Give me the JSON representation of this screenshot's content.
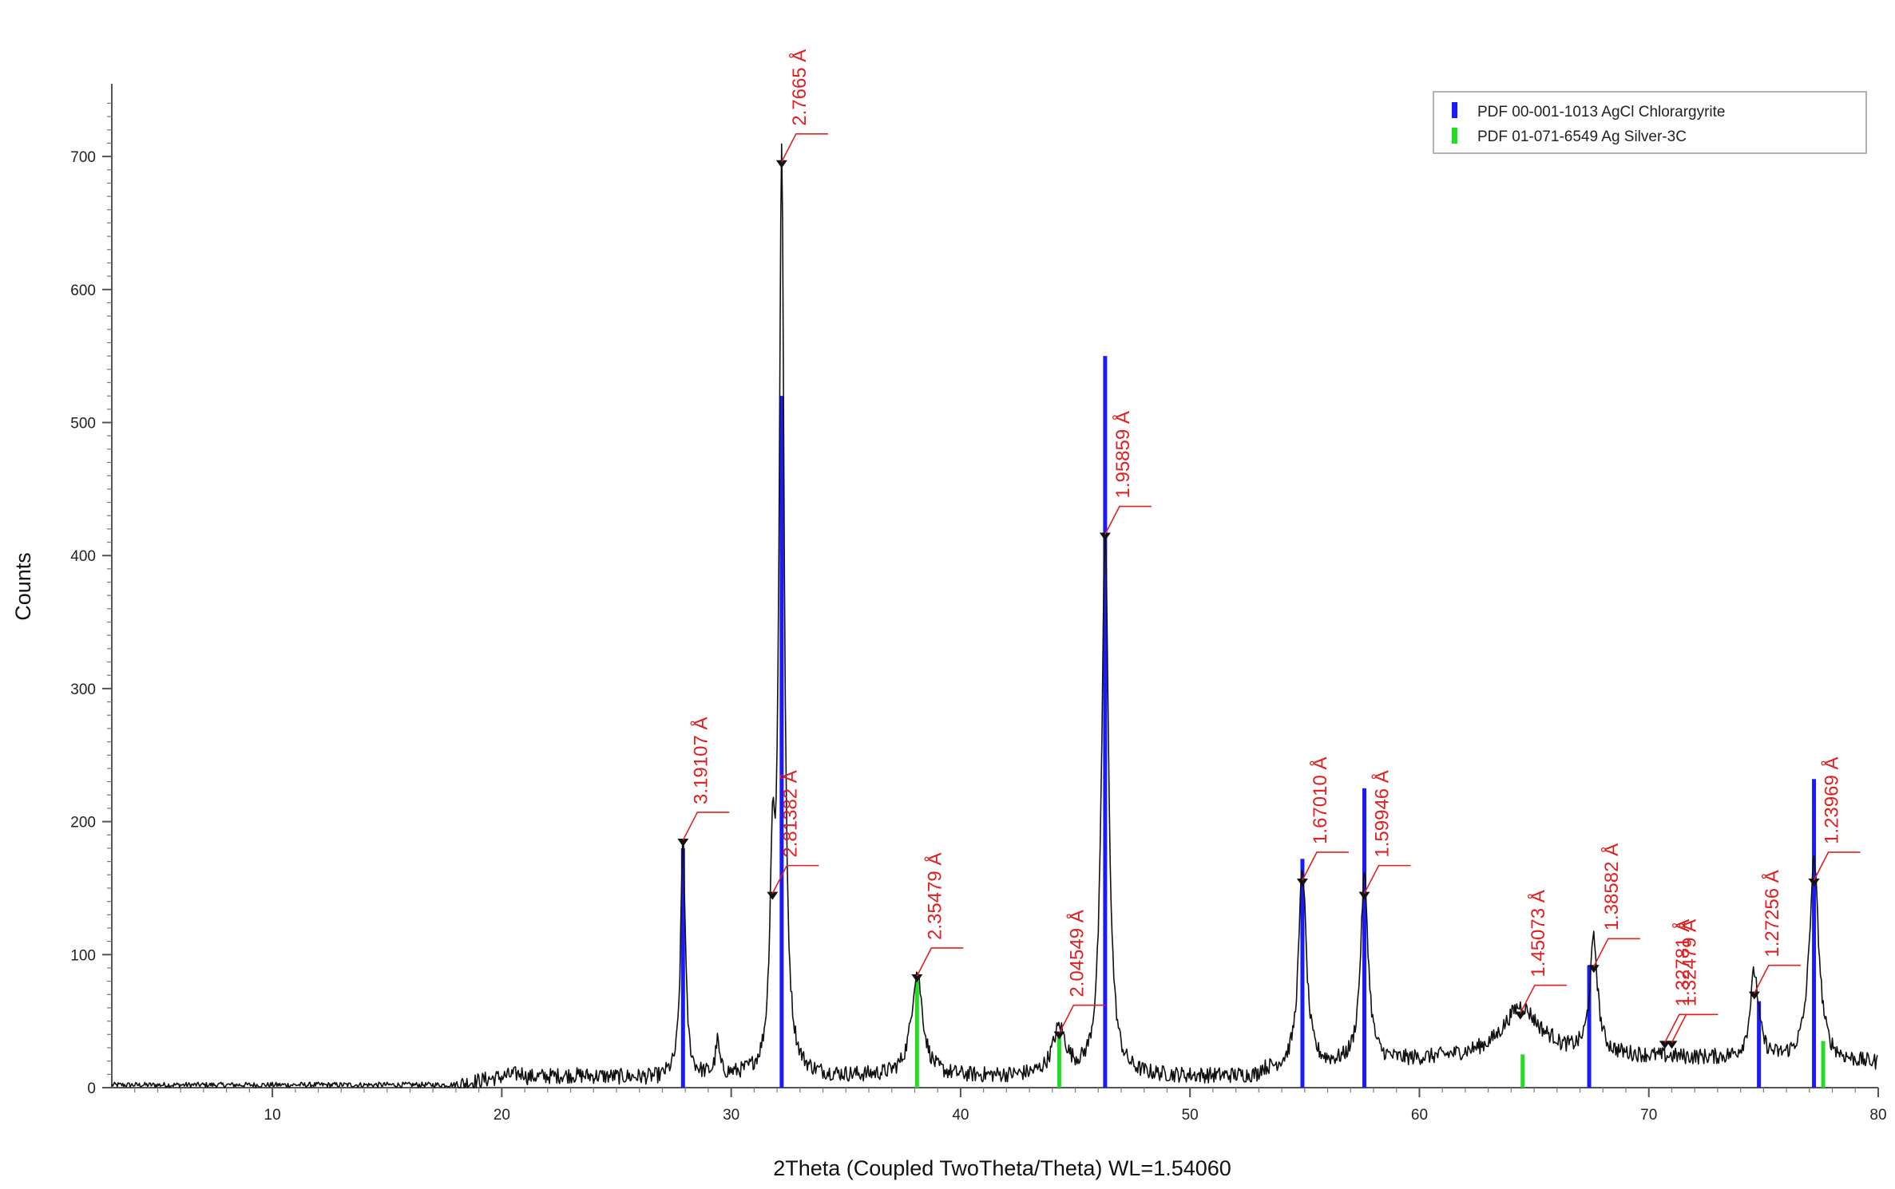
{
  "chart_data": {
    "type": "line",
    "title": "",
    "xlabel": "2Theta (Coupled TwoTheta/Theta) WL=1.54060",
    "ylabel": "Counts",
    "xlim": [
      3,
      80
    ],
    "ylim": [
      0,
      750
    ],
    "x_ticks": [
      10,
      20,
      30,
      40,
      50,
      60,
      70,
      80
    ],
    "y_ticks": [
      0,
      100,
      200,
      300,
      400,
      500,
      600,
      700
    ],
    "grid": false,
    "legend_position": "top-right",
    "colors": {
      "pattern": "#111111",
      "agcl": "#1a1aff",
      "ag": "#22dd22",
      "annotation": "#e02020"
    },
    "legend": [
      {
        "label": "PDF 00-001-1013 AgCl Chlorargyrite",
        "color": "#1a1aff"
      },
      {
        "label": "PDF 01-071-6549 Ag Silver-3C",
        "color": "#22dd22"
      }
    ],
    "series": [
      {
        "name": "PDF 00-001-1013 AgCl Chlorargyrite",
        "type": "stick",
        "x": [
          27.9,
          32.2,
          46.3,
          54.9,
          57.6,
          67.4,
          74.8,
          77.2
        ],
        "values": [
          180,
          520,
          550,
          172,
          225,
          92,
          65,
          232
        ]
      },
      {
        "name": "PDF 01-071-6549 Ag Silver-3C",
        "type": "stick",
        "x": [
          38.1,
          44.3,
          64.5,
          77.6
        ],
        "values": [
          80,
          42,
          25,
          35
        ]
      }
    ],
    "pattern_peaks": [
      {
        "x": 27.9,
        "y": 180,
        "w": 0.12
      },
      {
        "x": 29.4,
        "y": 25,
        "w": 0.1
      },
      {
        "x": 31.8,
        "y": 140,
        "w": 0.13
      },
      {
        "x": 32.2,
        "y": 690,
        "w": 0.13
      },
      {
        "x": 38.1,
        "y": 78,
        "w": 0.3
      },
      {
        "x": 44.3,
        "y": 35,
        "w": 0.35
      },
      {
        "x": 46.3,
        "y": 410,
        "w": 0.18
      },
      {
        "x": 54.9,
        "y": 150,
        "w": 0.2
      },
      {
        "x": 57.6,
        "y": 140,
        "w": 0.2
      },
      {
        "x": 64.4,
        "y": 35,
        "w": 0.9
      },
      {
        "x": 67.6,
        "y": 85,
        "w": 0.2
      },
      {
        "x": 74.6,
        "y": 65,
        "w": 0.22
      },
      {
        "x": 77.2,
        "y": 150,
        "w": 0.25
      }
    ],
    "annotations": [
      {
        "text": "2.7665 Å",
        "x": 32.2,
        "y": 690
      },
      {
        "text": "3.19107 Å",
        "x": 27.9,
        "y": 180
      },
      {
        "text": "2.81382 Å",
        "x": 31.8,
        "y": 140
      },
      {
        "text": "2.35479 Å",
        "x": 38.1,
        "y": 78
      },
      {
        "text": "2.04549 Å",
        "x": 44.3,
        "y": 35
      },
      {
        "text": "1.95859 Å",
        "x": 46.3,
        "y": 410
      },
      {
        "text": "1.67010 Å",
        "x": 54.9,
        "y": 150
      },
      {
        "text": "1.59946 Å",
        "x": 57.6,
        "y": 140
      },
      {
        "text": "1.45073 Å",
        "x": 64.4,
        "y": 50
      },
      {
        "text": "1.38582 Å",
        "x": 67.6,
        "y": 85
      },
      {
        "text": "1.32781 Å",
        "x": 70.7,
        "y": 28
      },
      {
        "text": "1.32479 Å",
        "x": 71.0,
        "y": 28
      },
      {
        "text": "1.27256 Å",
        "x": 74.6,
        "y": 65
      },
      {
        "text": "1.23969 Å",
        "x": 77.2,
        "y": 150
      }
    ]
  }
}
